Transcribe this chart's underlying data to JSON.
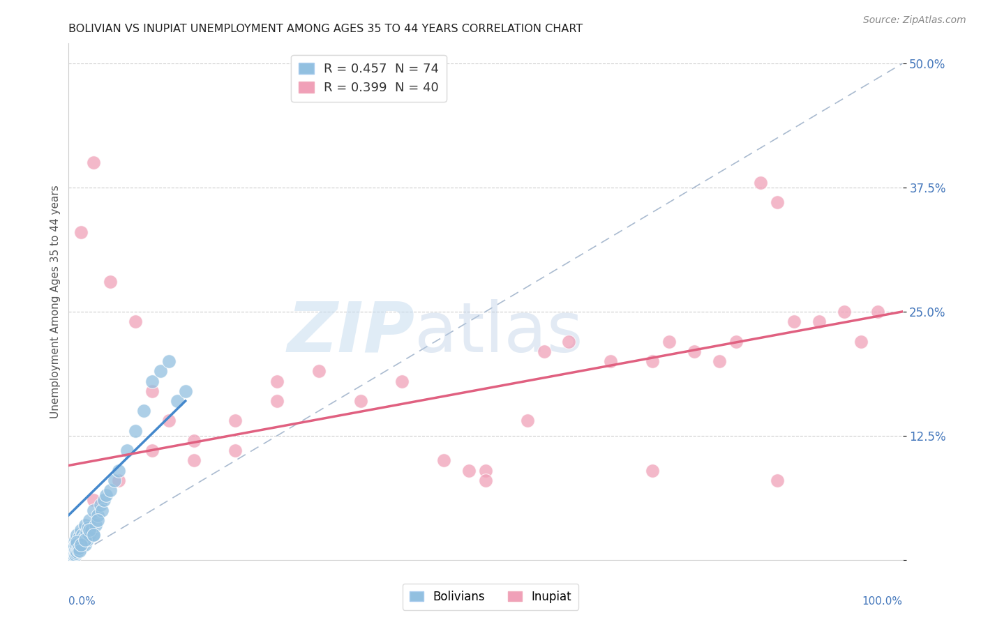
{
  "title": "BOLIVIAN VS INUPIAT UNEMPLOYMENT AMONG AGES 35 TO 44 YEARS CORRELATION CHART",
  "source": "Source: ZipAtlas.com",
  "ylabel": "Unemployment Among Ages 35 to 44 years",
  "bolivian_color": "#92c0e0",
  "inupiat_color": "#f0a0b8",
  "bolivian_line_color": "#4488cc",
  "inupiat_line_color": "#e06080",
  "diagonal_color": "#aabbd0",
  "legend_r_bolivian": "R = 0.457",
  "legend_n_bolivian": "N = 74",
  "legend_r_inupiat": "R = 0.399",
  "legend_n_inupiat": "N = 40",
  "bolivian_x": [
    0.2,
    0.3,
    0.4,
    0.5,
    0.5,
    0.6,
    0.7,
    0.8,
    0.8,
    0.9,
    1.0,
    1.0,
    1.1,
    1.2,
    1.3,
    1.4,
    1.5,
    1.5,
    1.6,
    1.7,
    1.8,
    2.0,
    2.0,
    2.1,
    2.2,
    2.3,
    2.5,
    2.5,
    2.7,
    3.0,
    3.0,
    3.2,
    3.5,
    3.8,
    4.0,
    4.2,
    4.5,
    5.0,
    5.5,
    6.0,
    7.0,
    8.0,
    9.0,
    10.0,
    11.0,
    12.0,
    13.0,
    14.0,
    0.1,
    0.2,
    0.3,
    0.3,
    0.4,
    0.4,
    0.5,
    0.5,
    0.6,
    0.6,
    0.7,
    0.7,
    0.8,
    0.8,
    0.9,
    0.9,
    1.0,
    1.0,
    1.1,
    1.2,
    1.3,
    1.5,
    2.0,
    2.5,
    3.0,
    3.5
  ],
  "bolivian_y": [
    0.5,
    1.0,
    0.3,
    1.5,
    0.7,
    1.2,
    0.8,
    2.0,
    1.5,
    1.0,
    1.0,
    2.5,
    1.8,
    2.2,
    1.5,
    2.0,
    1.2,
    3.0,
    2.5,
    1.8,
    2.2,
    1.5,
    3.5,
    2.8,
    2.0,
    3.2,
    2.5,
    4.0,
    3.0,
    2.5,
    5.0,
    3.5,
    4.5,
    5.5,
    5.0,
    6.0,
    6.5,
    7.0,
    8.0,
    9.0,
    11.0,
    13.0,
    15.0,
    18.0,
    19.0,
    20.0,
    16.0,
    17.0,
    0.1,
    0.2,
    0.3,
    0.5,
    0.3,
    0.7,
    0.4,
    1.0,
    0.5,
    1.2,
    0.6,
    1.4,
    0.5,
    1.0,
    0.7,
    1.5,
    0.8,
    1.8,
    1.0,
    1.2,
    0.9,
    1.5,
    2.0,
    3.0,
    2.5,
    4.0
  ],
  "inupiat_x": [
    1.5,
    3.0,
    5.0,
    8.0,
    10.0,
    12.0,
    15.0,
    20.0,
    25.0,
    30.0,
    35.0,
    40.0,
    45.0,
    50.0,
    55.0,
    57.0,
    60.0,
    65.0,
    70.0,
    72.0,
    75.0,
    78.0,
    80.0,
    83.0,
    85.0,
    87.0,
    90.0,
    93.0,
    95.0,
    97.0,
    3.0,
    6.0,
    10.0,
    15.0,
    20.0,
    25.0,
    48.0,
    50.0,
    70.0,
    85.0
  ],
  "inupiat_y": [
    33.0,
    40.0,
    28.0,
    24.0,
    17.0,
    14.0,
    12.0,
    14.0,
    18.0,
    19.0,
    16.0,
    18.0,
    10.0,
    9.0,
    14.0,
    21.0,
    22.0,
    20.0,
    20.0,
    22.0,
    21.0,
    20.0,
    22.0,
    38.0,
    36.0,
    24.0,
    24.0,
    25.0,
    22.0,
    25.0,
    6.0,
    8.0,
    11.0,
    10.0,
    11.0,
    16.0,
    9.0,
    8.0,
    9.0,
    8.0
  ],
  "b_trend_x0": 0.0,
  "b_trend_y0": 4.5,
  "b_trend_x1": 14.0,
  "b_trend_y1": 16.0,
  "i_trend_x0": 0.0,
  "i_trend_y0": 9.5,
  "i_trend_x1": 100.0,
  "i_trend_y1": 25.0,
  "xlim": [
    0,
    100
  ],
  "ylim": [
    0,
    52
  ],
  "ytick_vals": [
    0,
    12.5,
    25.0,
    37.5,
    50.0
  ],
  "ytick_labels": [
    "",
    "12.5%",
    "25.0%",
    "37.5%",
    "50.0%"
  ]
}
